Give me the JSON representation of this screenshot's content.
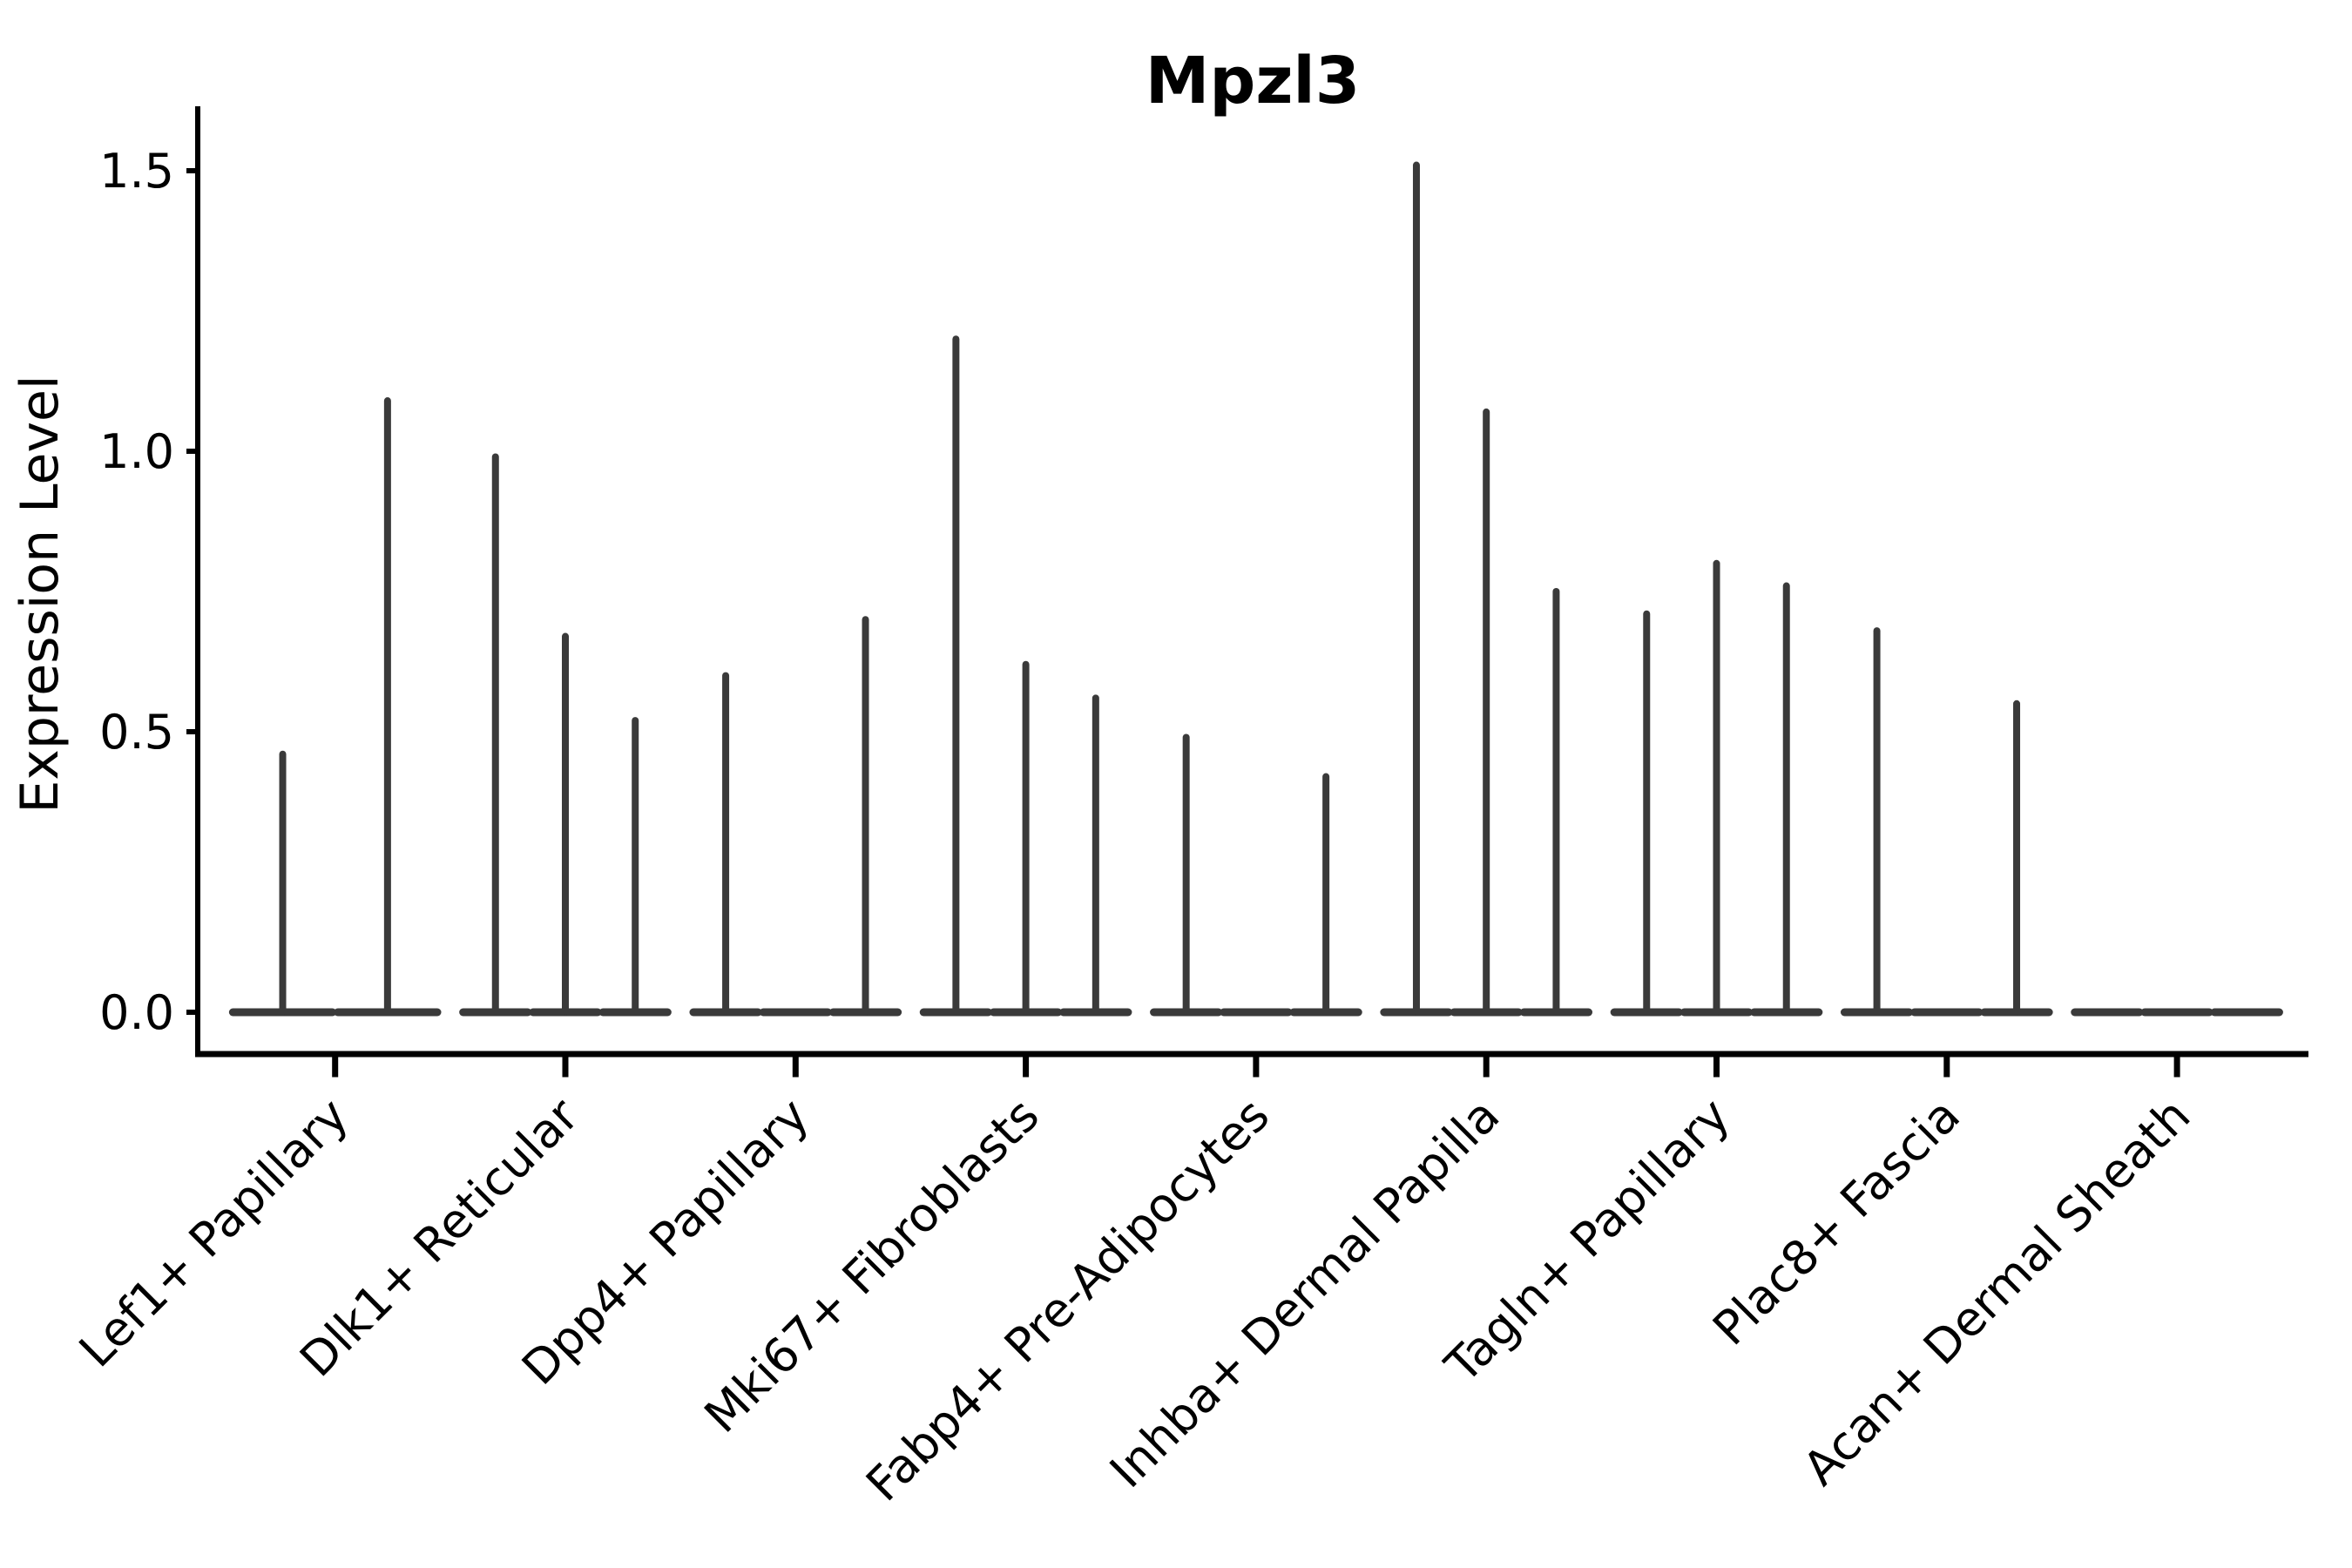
{
  "chart_data": {
    "type": "violin",
    "title": "Mpzl3",
    "ylabel": "Expression Level",
    "xlabel": "",
    "yticks": [
      0.0,
      0.5,
      1.0,
      1.5
    ],
    "ylim": [
      -0.07,
      1.61
    ],
    "grid": false,
    "legend_position": "none",
    "x_tick_label_rotation_deg": 45,
    "categories": [
      "Lef1+ Papillary",
      "Dlk1+ Reticular",
      "Dpp4+ Papillary",
      "Mki67+ Fibroblasts",
      "Fabp4+ Pre-Adipocytes",
      "Inhba+ Dermal Papilla",
      "Tagln+ Papillary",
      "Plac8+ Fascia",
      "Acan+ Dermal Sheath"
    ],
    "groups": [
      {
        "category": "Lef1+ Papillary",
        "violin_max_expression": [
          0.46,
          1.09
        ]
      },
      {
        "category": "Dlk1+ Reticular",
        "violin_max_expression": [
          0.99,
          0.67,
          0.52
        ]
      },
      {
        "category": "Dpp4+ Papillary",
        "violin_max_expression": [
          0.6,
          0.0,
          0.7
        ]
      },
      {
        "category": "Mki67+ Fibroblasts",
        "violin_max_expression": [
          1.2,
          0.62,
          0.56
        ]
      },
      {
        "category": "Fabp4+ Pre-Adipocytes",
        "violin_max_expression": [
          0.49,
          0.0,
          0.42
        ]
      },
      {
        "category": "Inhba+ Dermal Papilla",
        "violin_max_expression": [
          1.51,
          1.07,
          0.75
        ]
      },
      {
        "category": "Tagln+ Papillary",
        "violin_max_expression": [
          0.71,
          0.8,
          0.76
        ]
      },
      {
        "category": "Plac8+ Fascia",
        "violin_max_expression": [
          0.68,
          0.0,
          0.55
        ]
      },
      {
        "category": "Acan+ Dermal Sheath",
        "violin_max_expression": [
          0.0,
          0.0,
          0.0
        ]
      }
    ],
    "violin_color": "#3a3a3a",
    "axis_color": "#000000",
    "background_color": "#ffffff"
  }
}
